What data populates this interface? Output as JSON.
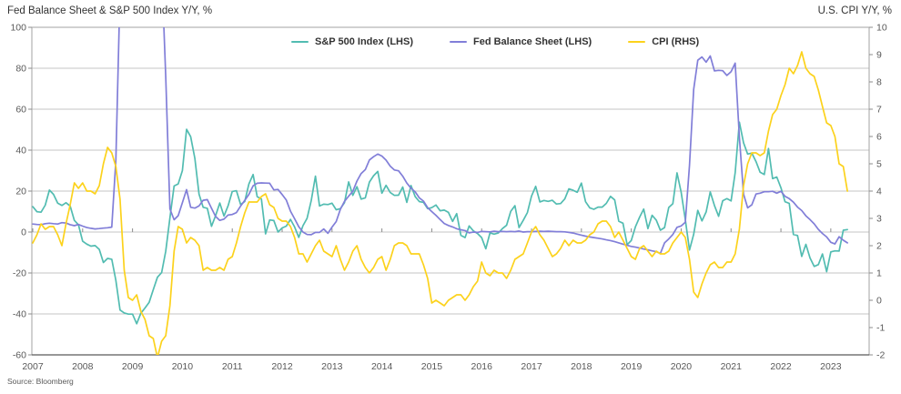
{
  "header": {
    "title_left": "Fed Balance Sheet & S&P 500 Index Y/Y, %",
    "title_right": "U.S. CPI Y/Y, %"
  },
  "footer": {
    "source": "Source: Bloomberg"
  },
  "chart_data": {
    "type": "line",
    "frequency": "monthly",
    "x_start": "2007-01",
    "x_end": "2023-05",
    "grid": "horizontal",
    "legend_position": "top-center",
    "year_labels": [
      2007,
      2008,
      2009,
      2010,
      2011,
      2012,
      2013,
      2014,
      2015,
      2016,
      2017,
      2018,
      2019,
      2020,
      2021,
      2022,
      2023
    ],
    "left_axis": {
      "min": -60,
      "max": 100,
      "tick_step": 20,
      "ticks": [
        100,
        80,
        60,
        40,
        20,
        0,
        -20,
        -40,
        -60
      ]
    },
    "right_axis": {
      "min": -2,
      "max": 10,
      "tick_step": 1,
      "ticks": [
        10,
        9,
        8,
        7,
        6,
        5,
        4,
        3,
        2,
        1,
        0,
        -1,
        -2
      ]
    },
    "colors": {
      "grid": "#c6c6c6",
      "frame": "#a3a3a3",
      "axis_bottom": "#595959",
      "tick": "#8c8c8c",
      "label_text": "#595959"
    },
    "series": [
      {
        "name": "S&P 500 Index (LHS)",
        "axis": "left",
        "color": "#52bcb1",
        "values": [
          12.4,
          9.9,
          9.7,
          13.1,
          20.5,
          18.4,
          14.1,
          13,
          14.3,
          12.7,
          5.7,
          3.5,
          -4.5,
          -5.9,
          -6.9,
          -6.6,
          -8.5,
          -14.9,
          -12.9,
          -13.3,
          -23.6,
          -38.1,
          -39.5,
          -40.1,
          -40.1,
          -44.8,
          -39.7,
          -37.1,
          -34.3,
          -28.2,
          -22.1,
          -19.8,
          -9.4,
          6.9,
          22.5,
          23.5,
          30,
          50.2,
          46.6,
          36,
          18.5,
          12.1,
          11.6,
          2.8,
          8,
          14.2,
          7.8,
          12.8,
          19.8,
          20.2,
          13.4,
          14.9,
          23.5,
          28.1,
          17.3,
          16.2,
          -0.9,
          5.9,
          5.6,
          0,
          2,
          2.9,
          6.2,
          2.5,
          -2.6,
          3.1,
          6.7,
          15.4,
          27.3,
          12.7,
          13.6,
          13.4,
          14.1,
          10.9,
          11.4,
          14.3,
          24.5,
          17.9,
          22.2,
          16.1,
          16.7,
          24.4,
          27.5,
          29.6,
          19,
          22.8,
          19.3,
          17.9,
          18,
          22,
          14.5,
          22.7,
          17.3,
          14.9,
          14.5,
          11.4,
          11.9,
          13.2,
          10.4,
          10.7,
          9.6,
          5.2,
          9,
          -1.6,
          -2.7,
          3,
          0.6,
          -0.7,
          -2.7,
          -8.2,
          -0.4,
          -1,
          -0.5,
          1.7,
          3.3,
          10.1,
          12.9,
          2.2,
          5.7,
          9.5,
          17.5,
          22.3,
          14.7,
          15.4,
          15,
          15.5,
          13.7,
          13.9,
          16.2,
          21.1,
          20.4,
          19.4,
          23.9,
          14.8,
          11.8,
          11.1,
          12.2,
          12.2,
          14,
          17.4,
          15.7,
          5.3,
          4.3,
          -6.2,
          -4.2,
          2.6,
          7.3,
          11.2,
          1.7,
          8.2,
          5.8,
          0.9,
          2.2,
          12,
          13.8,
          28.9,
          19.3,
          6.1,
          -8.8,
          -1.1,
          10.6,
          5.4,
          9.8,
          19.6,
          13,
          7.7,
          15.3,
          16.3,
          15.2,
          29,
          53.7,
          43.6,
          38.1,
          38.6,
          34.4,
          29.2,
          28.1,
          40.8,
          26.1,
          26.9,
          21.6,
          14.8,
          14,
          -1.2,
          -1.7,
          -11.9,
          -6,
          -12.6,
          -16.8,
          -15.9,
          -10.7,
          -19.4,
          -9.7,
          -9.2,
          -9.3,
          0.9,
          1.2
        ]
      },
      {
        "name": "Fed Balance Sheet (LHS)",
        "axis": "left",
        "color": "#817ed8",
        "values": [
          3.9,
          3.7,
          3.6,
          4.1,
          4.3,
          4.1,
          3.9,
          4.6,
          4.4,
          3.6,
          3.1,
          3.7,
          2.9,
          2.2,
          1.8,
          1.5,
          1.7,
          1.9,
          2.1,
          2.4,
          35,
          118,
          136,
          142,
          116,
          107,
          130,
          131,
          130,
          125,
          123,
          129,
          76,
          11.3,
          6,
          8,
          14.3,
          20.7,
          12.1,
          11.7,
          12.8,
          15.5,
          15.8,
          11.6,
          7.6,
          5.7,
          6.3,
          8.3,
          8.6,
          9.5,
          12.7,
          15.4,
          18.4,
          22.6,
          23.8,
          24,
          23.9,
          23.8,
          20.6,
          20.8,
          18.3,
          15.6,
          10.2,
          6.5,
          2.6,
          0,
          -1.2,
          -1.3,
          -0.2,
          -0.2,
          1.5,
          -0.6,
          2.4,
          5.1,
          11.1,
          15,
          17.5,
          19.9,
          24.9,
          28.6,
          30.5,
          35.2,
          36.8,
          38.1,
          37.1,
          35.1,
          32.2,
          30.3,
          29.9,
          27.3,
          23.9,
          21.4,
          19.6,
          16.7,
          15.1,
          11.9,
          10,
          8.2,
          6.1,
          4.2,
          3.2,
          2.5,
          1.6,
          1.1,
          0.7,
          -0.4,
          0,
          -0.2,
          0.3,
          0.2,
          0.1,
          0.4,
          0.2,
          0.3,
          0.2,
          0.3,
          0.2,
          0.5,
          0,
          0.2,
          0.2,
          0.3,
          0.4,
          0.3,
          0.4,
          0.3,
          0.2,
          0.2,
          0.1,
          -0.2,
          -0.5,
          -1,
          -1.5,
          -2,
          -2.4,
          -2.7,
          -3,
          -3.4,
          -3.8,
          -4.2,
          -4.7,
          -5.3,
          -5.9,
          -6.5,
          -7,
          -7.4,
          -7.8,
          -8.3,
          -8.7,
          -9.2,
          -9.6,
          -10.5,
          -5.3,
          -3.4,
          -1.2,
          2.3,
          3,
          4.8,
          32.6,
          69.7,
          83.9,
          85.5,
          83,
          86,
          78.7,
          79,
          78.8,
          76.5,
          78.3,
          82.5,
          46.5,
          18.5,
          11.8,
          13.3,
          18.6,
          19,
          19.7,
          19.7,
          19.9,
          19,
          19.9,
          17.4,
          16.3,
          14.6,
          12.2,
          10.5,
          7.9,
          6.1,
          4,
          1.3,
          -0.7,
          -2.4,
          -5,
          -5.8,
          -2.3,
          -4,
          -5.3
        ]
      },
      {
        "name": "CPI (RHS)",
        "axis": "right",
        "color": "#fcd21c",
        "values": [
          2.1,
          2.4,
          2.8,
          2.6,
          2.7,
          2.7,
          2.4,
          2,
          2.8,
          3.5,
          4.3,
          4.1,
          4.3,
          4,
          4,
          3.9,
          4.2,
          5,
          5.6,
          5.4,
          4.9,
          3.7,
          1.1,
          0.1,
          0,
          0.2,
          -0.4,
          -0.7,
          -1.3,
          -1.4,
          -2.1,
          -1.5,
          -1.3,
          -0.2,
          1.8,
          2.7,
          2.6,
          2.1,
          2.3,
          2.2,
          2,
          1.1,
          1.2,
          1.1,
          1.1,
          1.2,
          1.1,
          1.5,
          1.6,
          2.1,
          2.7,
          3.2,
          3.6,
          3.6,
          3.6,
          3.8,
          3.9,
          3.5,
          3.4,
          3,
          2.9,
          2.9,
          2.7,
          2.3,
          1.7,
          1.7,
          1.4,
          1.7,
          2,
          2.2,
          1.8,
          1.7,
          1.6,
          2,
          1.5,
          1.1,
          1.4,
          1.8,
          2,
          1.5,
          1.2,
          1,
          1.2,
          1.5,
          1.6,
          1.1,
          1.5,
          2,
          2.1,
          2.1,
          2,
          1.7,
          1.7,
          1.7,
          1.3,
          0.8,
          -0.1,
          0,
          -0.1,
          -0.2,
          0,
          0.1,
          0.2,
          0.2,
          0,
          0.2,
          0.5,
          0.7,
          1.4,
          1,
          0.9,
          1.1,
          1,
          1,
          0.8,
          1.1,
          1.5,
          1.6,
          1.7,
          2.1,
          2.5,
          2.7,
          2.4,
          2.2,
          1.9,
          1.6,
          1.7,
          1.9,
          2.2,
          2,
          2.2,
          2.1,
          2.1,
          2.2,
          2.4,
          2.5,
          2.8,
          2.9,
          2.9,
          2.7,
          2.3,
          2.5,
          2.2,
          1.9,
          1.6,
          1.5,
          1.9,
          2,
          1.8,
          1.6,
          1.8,
          1.7,
          1.7,
          1.8,
          2.1,
          2.3,
          2.5,
          2.3,
          1.5,
          0.3,
          0.1,
          0.6,
          1,
          1.3,
          1.4,
          1.2,
          1.2,
          1.4,
          1.4,
          1.7,
          2.6,
          4.2,
          5,
          5.4,
          5.4,
          5.3,
          5.4,
          6.2,
          6.8,
          7,
          7.5,
          7.9,
          8.5,
          8.3,
          8.6,
          9.1,
          8.5,
          8.3,
          8.2,
          7.7,
          7.1,
          6.5,
          6.4,
          6,
          5,
          4.9,
          4
        ]
      }
    ]
  }
}
